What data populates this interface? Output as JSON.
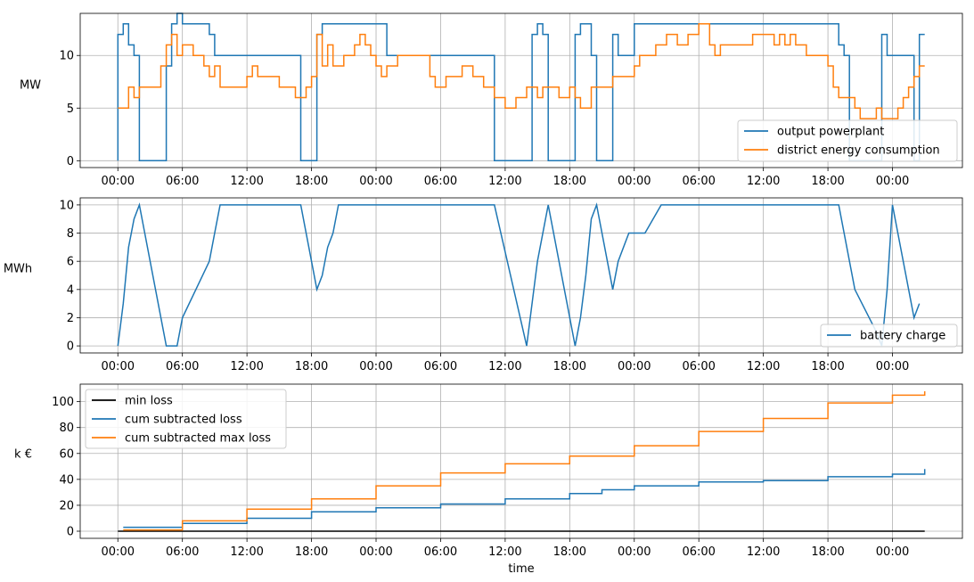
{
  "colors": {
    "blue": "#1f77b4",
    "orange": "#ff7f0e",
    "black": "#000000",
    "grid": "#b0b0b0"
  },
  "time_ticks": [
    "00:00",
    "06:00",
    "12:00",
    "18:00",
    "00:00",
    "06:00",
    "12:00",
    "18:00",
    "00:00",
    "06:00",
    "12:00",
    "18:00",
    "00:00"
  ],
  "xlabel": "time",
  "chart_data": [
    {
      "type": "line",
      "ylabel": "MW",
      "ylim": [
        -0.65,
        14
      ],
      "yticks": [
        0,
        5,
        10
      ],
      "xlim_hours": [
        -3.5,
        78.5
      ],
      "grid": true,
      "legend": "bottom-right",
      "series": [
        {
          "name": "output powerplant",
          "color": "blue",
          "step": true,
          "points": [
            [
              0,
              0
            ],
            [
              0,
              12
            ],
            [
              0.5,
              13
            ],
            [
              1,
              11
            ],
            [
              1.5,
              10
            ],
            [
              2,
              0
            ],
            [
              4.5,
              9
            ],
            [
              5,
              13
            ],
            [
              5.5,
              14
            ],
            [
              6,
              13
            ],
            [
              8.5,
              12
            ],
            [
              9,
              10
            ],
            [
              17,
              0
            ],
            [
              18.5,
              12
            ],
            [
              19,
              13
            ],
            [
              25,
              10
            ],
            [
              35,
              0
            ],
            [
              38.5,
              12
            ],
            [
              39,
              13
            ],
            [
              39.5,
              12
            ],
            [
              40,
              0
            ],
            [
              42.5,
              12
            ],
            [
              43,
              13
            ],
            [
              44,
              10
            ],
            [
              44.5,
              0
            ],
            [
              46,
              12
            ],
            [
              46.5,
              10
            ],
            [
              48,
              13
            ],
            [
              67,
              11
            ],
            [
              67.5,
              10
            ],
            [
              68,
              0
            ],
            [
              71,
              12
            ],
            [
              71.5,
              10
            ],
            [
              74,
              0
            ],
            [
              74.5,
              12
            ],
            [
              75,
              12
            ]
          ]
        },
        {
          "name": "district energy consumption",
          "color": "orange",
          "step": true,
          "points": [
            [
              0,
              5
            ],
            [
              1,
              7
            ],
            [
              1.5,
              6
            ],
            [
              2,
              7
            ],
            [
              4,
              9
            ],
            [
              4.5,
              11
            ],
            [
              5,
              12
            ],
            [
              5.5,
              10
            ],
            [
              6,
              11
            ],
            [
              7,
              10
            ],
            [
              8,
              9
            ],
            [
              8.5,
              8
            ],
            [
              9,
              9
            ],
            [
              9.5,
              7
            ],
            [
              12,
              8
            ],
            [
              12.5,
              9
            ],
            [
              13,
              8
            ],
            [
              15,
              7
            ],
            [
              16.5,
              6
            ],
            [
              17.5,
              7
            ],
            [
              18,
              8
            ],
            [
              18.5,
              12
            ],
            [
              19,
              9
            ],
            [
              19.5,
              11
            ],
            [
              20,
              9
            ],
            [
              21,
              10
            ],
            [
              22,
              11
            ],
            [
              22.5,
              12
            ],
            [
              23,
              11
            ],
            [
              23.5,
              10
            ],
            [
              24,
              9
            ],
            [
              24.5,
              8
            ],
            [
              25,
              9
            ],
            [
              26,
              10
            ],
            [
              29,
              8
            ],
            [
              29.5,
              7
            ],
            [
              30.5,
              8
            ],
            [
              32,
              9
            ],
            [
              33,
              8
            ],
            [
              34,
              7
            ],
            [
              35,
              6
            ],
            [
              36,
              5
            ],
            [
              37,
              6
            ],
            [
              38,
              7
            ],
            [
              39,
              6
            ],
            [
              39.5,
              7
            ],
            [
              41,
              6
            ],
            [
              42,
              7
            ],
            [
              42.5,
              6
            ],
            [
              43,
              5
            ],
            [
              44,
              7
            ],
            [
              46,
              8
            ],
            [
              48,
              9
            ],
            [
              48.5,
              10
            ],
            [
              50,
              11
            ],
            [
              51,
              12
            ],
            [
              52,
              11
            ],
            [
              53,
              12
            ],
            [
              54,
              13
            ],
            [
              55,
              11
            ],
            [
              55.5,
              10
            ],
            [
              56,
              11
            ],
            [
              59,
              12
            ],
            [
              61,
              11
            ],
            [
              61.5,
              12
            ],
            [
              62,
              11
            ],
            [
              62.5,
              12
            ],
            [
              63,
              11
            ],
            [
              64,
              10
            ],
            [
              66,
              9
            ],
            [
              66.5,
              7
            ],
            [
              67,
              6
            ],
            [
              68.5,
              5
            ],
            [
              69,
              4
            ],
            [
              70.5,
              5
            ],
            [
              71,
              4
            ],
            [
              72.5,
              5
            ],
            [
              73,
              6
            ],
            [
              73.5,
              7
            ],
            [
              74,
              8
            ],
            [
              74.5,
              9
            ],
            [
              75,
              9
            ]
          ]
        }
      ]
    },
    {
      "type": "line",
      "ylabel": "MWh",
      "ylim": [
        -0.5,
        10.5
      ],
      "yticks": [
        0,
        2,
        4,
        6,
        8,
        10
      ],
      "xlim_hours": [
        -3.5,
        78.5
      ],
      "grid": true,
      "legend": "bottom-right",
      "series": [
        {
          "name": "battery charge",
          "color": "blue",
          "step": false,
          "points": [
            [
              0,
              0
            ],
            [
              0.5,
              3
            ],
            [
              1,
              7
            ],
            [
              1.5,
              9
            ],
            [
              2,
              10
            ],
            [
              4.5,
              0
            ],
            [
              5.5,
              0
            ],
            [
              6,
              2
            ],
            [
              8.5,
              6
            ],
            [
              9,
              8
            ],
            [
              9.5,
              10
            ],
            [
              17,
              10
            ],
            [
              18.5,
              4
            ],
            [
              19,
              5
            ],
            [
              19.5,
              7
            ],
            [
              20,
              8
            ],
            [
              20.5,
              10
            ],
            [
              35,
              10
            ],
            [
              38,
              0
            ],
            [
              39,
              6
            ],
            [
              40,
              10
            ],
            [
              42.5,
              0
            ],
            [
              43,
              2
            ],
            [
              43.5,
              5
            ],
            [
              44,
              9
            ],
            [
              44.5,
              10
            ],
            [
              46,
              4
            ],
            [
              46.5,
              6
            ],
            [
              47.5,
              8
            ],
            [
              49,
              8
            ],
            [
              50.5,
              10
            ],
            [
              67,
              10
            ],
            [
              68.5,
              4
            ],
            [
              70.5,
              1
            ],
            [
              71,
              0
            ],
            [
              71.5,
              4
            ],
            [
              72,
              10
            ],
            [
              74,
              2
            ],
            [
              74.5,
              3
            ]
          ]
        }
      ]
    },
    {
      "type": "line",
      "ylabel": "k €",
      "ylim": [
        -5.5,
        113.5
      ],
      "yticks": [
        0,
        20,
        40,
        60,
        80,
        100
      ],
      "xlim_hours": [
        -3.5,
        78.5
      ],
      "grid": true,
      "legend": "top-left",
      "series": [
        {
          "name": "min loss",
          "color": "black",
          "step": false,
          "points": [
            [
              0,
              0
            ],
            [
              75,
              0
            ]
          ]
        },
        {
          "name": "cum subtracted loss",
          "color": "blue",
          "step": true,
          "points": [
            [
              0.5,
              3
            ],
            [
              6,
              6
            ],
            [
              12,
              10
            ],
            [
              18,
              15
            ],
            [
              24,
              18
            ],
            [
              30,
              21
            ],
            [
              36,
              25
            ],
            [
              42,
              29
            ],
            [
              45,
              32
            ],
            [
              48,
              35
            ],
            [
              54,
              38
            ],
            [
              60,
              39
            ],
            [
              66,
              42
            ],
            [
              72,
              44
            ],
            [
              75,
              48
            ]
          ]
        },
        {
          "name": "cum subtracted max loss",
          "color": "orange",
          "step": true,
          "points": [
            [
              0.5,
              1
            ],
            [
              6,
              8
            ],
            [
              12,
              17
            ],
            [
              18,
              25
            ],
            [
              24,
              35
            ],
            [
              30,
              45
            ],
            [
              36,
              52
            ],
            [
              42,
              58
            ],
            [
              48,
              66
            ],
            [
              54,
              77
            ],
            [
              60,
              87
            ],
            [
              66,
              99
            ],
            [
              72,
              105
            ],
            [
              75,
              108
            ]
          ]
        }
      ]
    }
  ]
}
